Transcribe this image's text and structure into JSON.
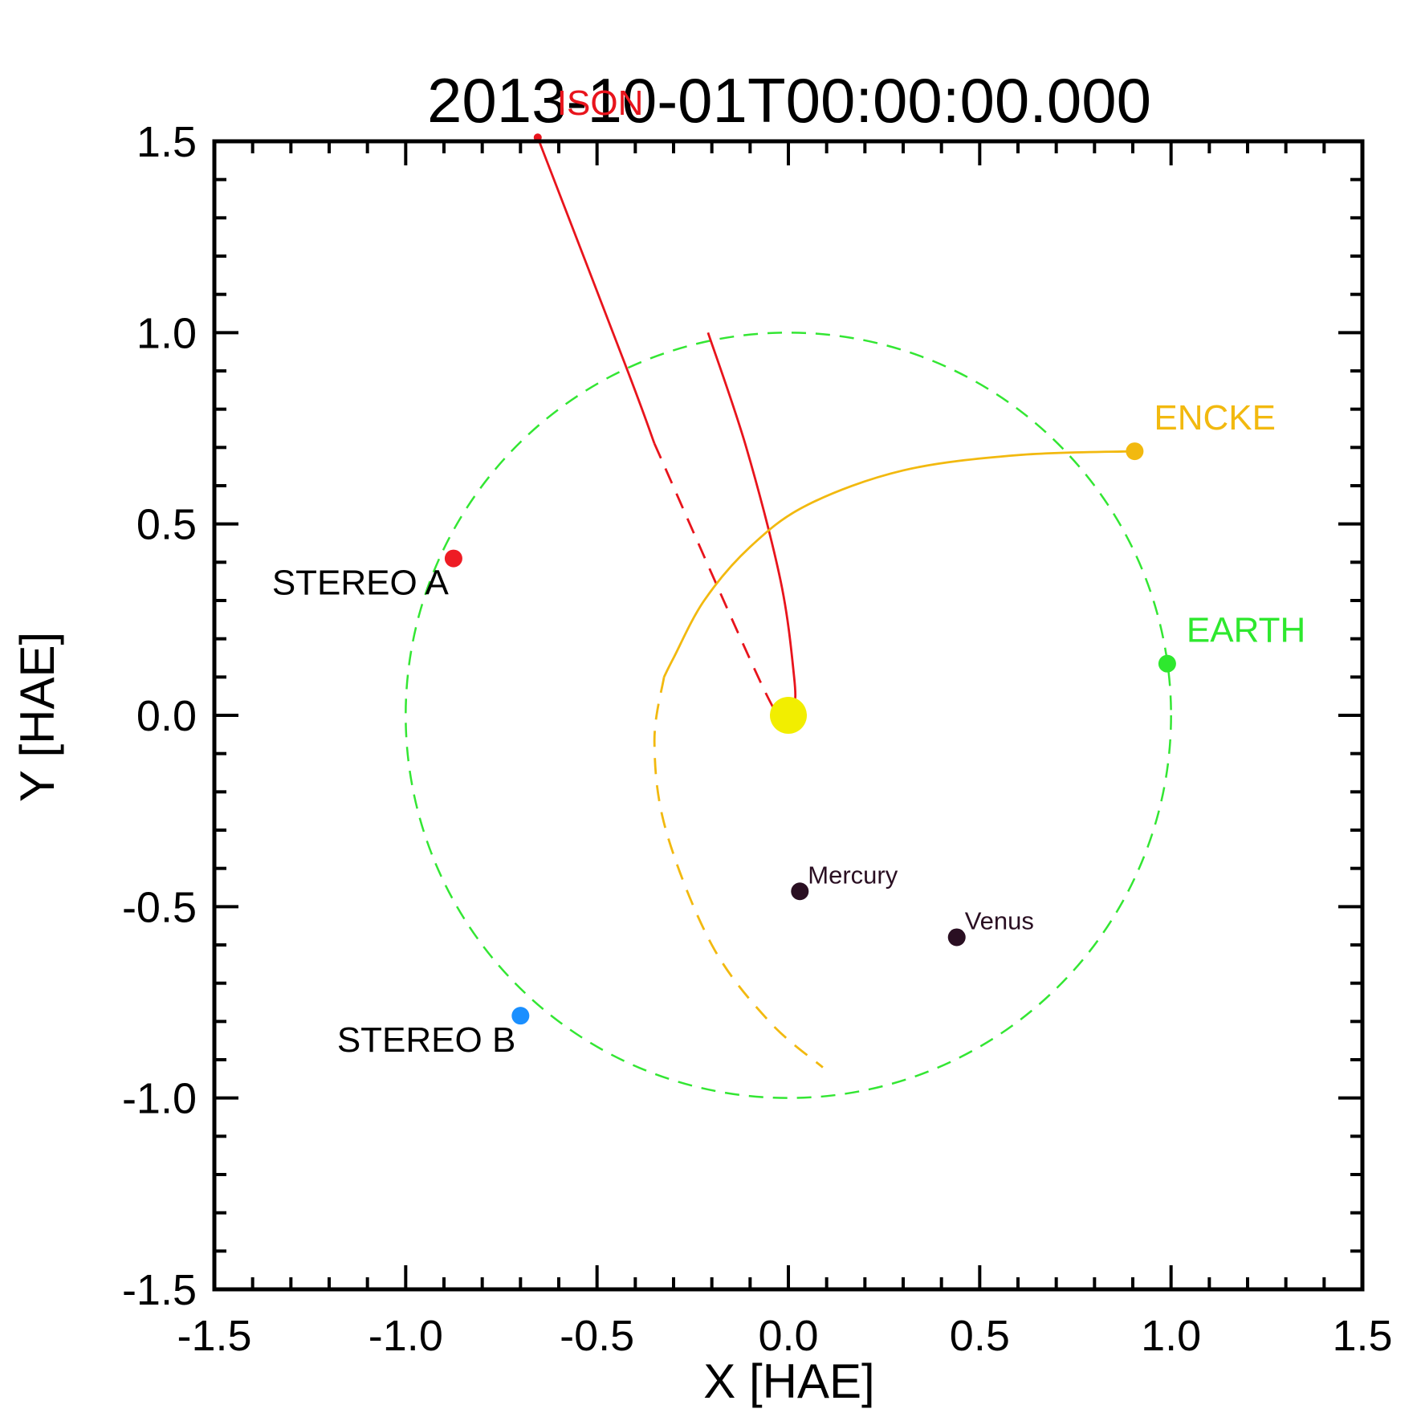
{
  "chart_data": {
    "type": "scatter",
    "title": "2013-10-01T00:00:00.000",
    "xlabel": "X [HAE]",
    "ylabel": "Y [HAE]",
    "xlim": [
      -1.5,
      1.5
    ],
    "ylim": [
      -1.5,
      1.5
    ],
    "x_ticks": [
      "-1.5",
      "-1.0",
      "-0.5",
      "0.0",
      "0.5",
      "1.0",
      "1.5"
    ],
    "y_ticks": [
      "-1.5",
      "-1.0",
      "-0.5",
      "0.0",
      "0.5",
      "1.0",
      "1.5"
    ],
    "grid": false,
    "colors": {
      "earth_orbit": "#33e633",
      "ison": "#e8141c",
      "encke": "#f2b90f",
      "sun": "#f2ee00",
      "planet": "#2a0f22",
      "stereo_a": "#ee1c24",
      "stereo_b": "#1a8fff",
      "earth": "#2ee82e",
      "text": "#000000"
    },
    "sun": {
      "x": 0.0,
      "y": 0.0
    },
    "earth_orbit": {
      "radius": 1.0
    },
    "objects": [
      {
        "name": "STEREO A",
        "x": -0.875,
        "y": 0.41,
        "color": "#ee1c24",
        "label_color": "#000000",
        "size": "big",
        "label_side": "left-below"
      },
      {
        "name": "STEREO B",
        "x": -0.7,
        "y": -0.785,
        "color": "#1a8fff",
        "label_color": "#000000",
        "size": "big",
        "label_side": "left-below"
      },
      {
        "name": "EARTH",
        "x": 0.99,
        "y": 0.135,
        "color": "#2ee82e",
        "label_color": "#2ee82e",
        "size": "big",
        "label_side": "right-above"
      },
      {
        "name": "ENCKE",
        "x": 0.905,
        "y": 0.69,
        "color": "#f2b90f",
        "label_color": "#f2b90f",
        "size": "big",
        "label_side": "right-above"
      },
      {
        "name": "Mercury",
        "x": 0.03,
        "y": -0.46,
        "color": "#2a0f22",
        "label_color": "#2a0f22",
        "size": "small",
        "label_side": "right-above"
      },
      {
        "name": "Venus",
        "x": 0.44,
        "y": -0.58,
        "color": "#2a0f22",
        "label_color": "#2a0f22",
        "size": "small",
        "label_side": "right-above"
      },
      {
        "name": "ISON",
        "x": -0.655,
        "y": 1.51,
        "color": "#e8141c",
        "label_color": "#e8141c",
        "size": "big",
        "label_side": "right-above"
      }
    ],
    "series": [
      {
        "name": "ISON outbound",
        "color": "#e8141c",
        "style": "solid",
        "points": [
          [
            0.0,
            -0.01
          ],
          [
            0.015,
            0.02
          ],
          [
            0.015,
            0.1
          ],
          [
            -0.02,
            0.35
          ],
          [
            -0.11,
            0.7
          ],
          [
            -0.21,
            1.0
          ]
        ]
      },
      {
        "name": "ISON inbound",
        "color": "#e8141c",
        "style": "solid",
        "points": [
          [
            -0.655,
            1.51
          ],
          [
            -0.42,
            0.9
          ],
          [
            -0.35,
            0.71
          ]
        ]
      },
      {
        "name": "ISON inbound (behind)",
        "color": "#e8141c",
        "style": "dashed",
        "points": [
          [
            -0.35,
            0.71
          ],
          [
            -0.06,
            0.06
          ],
          [
            0.0,
            -0.01
          ]
        ]
      },
      {
        "name": "ENCKE orbit",
        "color": "#f2b90f",
        "style": "solid",
        "points": [
          [
            0.905,
            0.69
          ],
          [
            0.6,
            0.68
          ],
          [
            0.3,
            0.64
          ],
          [
            0.05,
            0.55
          ],
          [
            -0.1,
            0.44
          ],
          [
            -0.22,
            0.3
          ],
          [
            -0.3,
            0.15
          ],
          [
            -0.325,
            0.1
          ]
        ]
      },
      {
        "name": "ENCKE orbit (behind)",
        "color": "#f2b90f",
        "style": "dashed",
        "points": [
          [
            -0.325,
            0.1
          ],
          [
            -0.35,
            -0.07
          ],
          [
            -0.32,
            -0.3
          ],
          [
            -0.2,
            -0.6
          ],
          [
            -0.05,
            -0.8
          ],
          [
            0.09,
            -0.92
          ]
        ]
      }
    ]
  }
}
